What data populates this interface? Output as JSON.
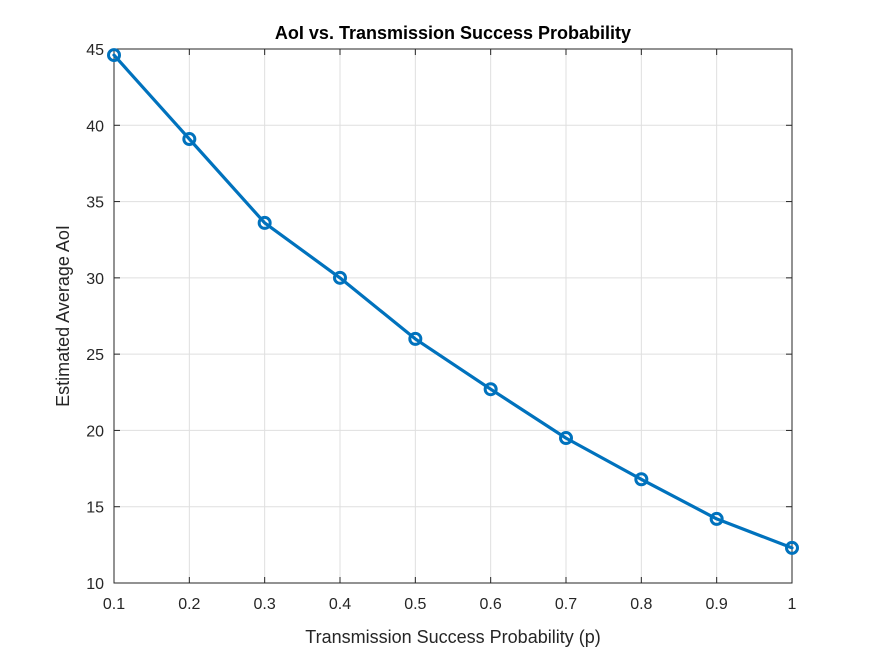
{
  "chart_data": {
    "type": "line",
    "title": "AoI vs. Transmission Success Probability",
    "xlabel": "Transmission Success Probability (p)",
    "ylabel": "Estimated Average AoI",
    "xlim": [
      0.1,
      1
    ],
    "ylim": [
      10,
      45
    ],
    "xticks": [
      0.1,
      0.2,
      0.3,
      0.4,
      0.5,
      0.6,
      0.7,
      0.8,
      0.9,
      1
    ],
    "xtick_labels": [
      "0.1",
      "0.2",
      "0.3",
      "0.4",
      "0.5",
      "0.6",
      "0.7",
      "0.8",
      "0.9",
      "1"
    ],
    "yticks": [
      10,
      15,
      20,
      25,
      30,
      35,
      40,
      45
    ],
    "ytick_labels": [
      "10",
      "15",
      "20",
      "25",
      "30",
      "35",
      "40",
      "45"
    ],
    "grid": true,
    "series": [
      {
        "x": [
          0.1,
          0.2,
          0.3,
          0.4,
          0.5,
          0.6,
          0.7,
          0.8,
          0.9,
          1.0
        ],
        "values": [
          44.6,
          39.1,
          33.6,
          30.0,
          26.0,
          22.7,
          19.5,
          16.8,
          14.2,
          12.3
        ],
        "color": "#0072BD",
        "marker": "circle"
      }
    ]
  }
}
